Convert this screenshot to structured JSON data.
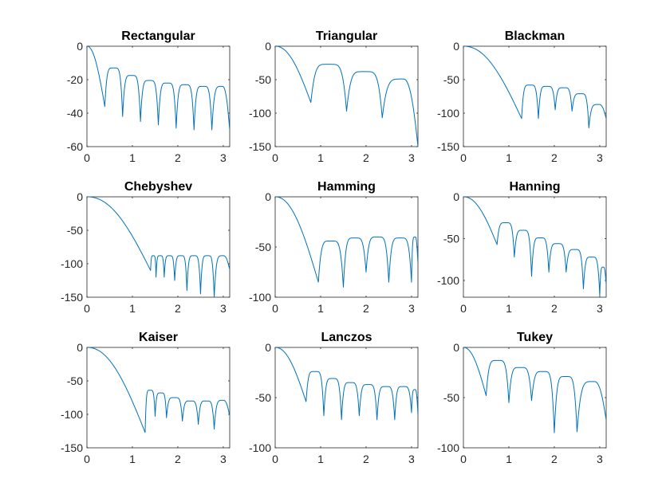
{
  "figure": {
    "background": "#ffffff",
    "line_color": "#0072bd"
  },
  "chart_data": [
    {
      "type": "line",
      "title": "Rectangular",
      "xlim": [
        0,
        3.1416
      ],
      "ylim": [
        -60,
        0
      ],
      "xticks": [
        "0",
        "1",
        "2",
        "3"
      ],
      "yticks": [
        "0",
        "-20",
        "-40",
        "-60"
      ],
      "lobe_nulls": [
        0.393,
        0.785,
        1.178,
        1.571,
        1.963,
        2.356,
        2.749
      ],
      "null_depths": [
        -36,
        -42,
        -45,
        -47,
        -49,
        -50,
        -50
      ],
      "lobe_peaks": [
        -13,
        -17.5,
        -20.5,
        -22,
        -23,
        -24,
        -24
      ],
      "end_value": -50
    },
    {
      "type": "line",
      "title": "Triangular",
      "xlim": [
        0,
        3.1416
      ],
      "ylim": [
        -150,
        0
      ],
      "xticks": [
        "0",
        "1",
        "2",
        "3"
      ],
      "yticks": [
        "0",
        "-50",
        "-100",
        "-150"
      ],
      "lobe_nulls": [
        0.785,
        1.571,
        2.356
      ],
      "null_depths": [
        -84,
        -97,
        -107
      ],
      "lobe_peaks": [
        -27,
        -38,
        -49
      ],
      "end_value": -150
    },
    {
      "type": "line",
      "title": "Blackman",
      "xlim": [
        0,
        3.1416
      ],
      "ylim": [
        -150,
        0
      ],
      "xticks": [
        "0",
        "1",
        "2",
        "3"
      ],
      "yticks": [
        "0",
        "-50",
        "-100",
        "-150"
      ],
      "lobe_nulls": [
        1.28,
        1.65,
        2.02,
        2.39,
        2.76
      ],
      "null_depths": [
        -108,
        -108,
        -95,
        -97,
        -122
      ],
      "lobe_peaks": [
        -58,
        -60,
        -62,
        -71,
        -87
      ],
      "end_value": -108
    },
    {
      "type": "line",
      "title": "Chebyshev",
      "xlim": [
        0,
        3.1416
      ],
      "ylim": [
        -150,
        0
      ],
      "xticks": [
        "0",
        "1",
        "2",
        "3"
      ],
      "yticks": [
        "0",
        "-50",
        "-100",
        "-150"
      ],
      "lobe_nulls": [
        1.4,
        1.52,
        1.7,
        1.93,
        2.2,
        2.5,
        2.8
      ],
      "null_depths": [
        -110,
        -120,
        -120,
        -125,
        -140,
        -145,
        -150
      ],
      "lobe_peaks": [
        -88,
        -88,
        -88,
        -88,
        -88,
        -88,
        -88
      ],
      "end_value": -108
    },
    {
      "type": "line",
      "title": "Hamming",
      "xlim": [
        0,
        3.1416
      ],
      "ylim": [
        -100,
        0
      ],
      "xticks": [
        "0",
        "1",
        "2",
        "3"
      ],
      "yticks": [
        "0",
        "-50",
        "-100"
      ],
      "lobe_nulls": [
        0.95,
        1.5,
        2.0,
        2.5,
        3.0
      ],
      "null_depths": [
        -85,
        -90,
        -75,
        -85,
        -85
      ],
      "lobe_peaks": [
        -44,
        -41,
        -40,
        -41,
        -40
      ],
      "end_value": -66
    },
    {
      "type": "line",
      "title": "Hanning",
      "xlim": [
        0,
        3.1416
      ],
      "ylim": [
        -120,
        0
      ],
      "xticks": [
        "0",
        "1",
        "2",
        "3"
      ],
      "yticks": [
        "0",
        "-50",
        "-100"
      ],
      "lobe_nulls": [
        0.74,
        1.12,
        1.5,
        1.88,
        2.26,
        2.64,
        3.0
      ],
      "null_depths": [
        -57,
        -72,
        -95,
        -90,
        -90,
        -110,
        -118
      ],
      "lobe_peaks": [
        -31,
        -40,
        -49,
        -56,
        -63,
        -72,
        -84
      ],
      "end_value": -104
    },
    {
      "type": "line",
      "title": "Kaiser",
      "xlim": [
        0,
        3.1416
      ],
      "ylim": [
        -150,
        0
      ],
      "xticks": [
        "0",
        "1",
        "2",
        "3"
      ],
      "yticks": [
        "0",
        "-50",
        "-100",
        "-150"
      ],
      "lobe_nulls": [
        1.28,
        1.5,
        1.75,
        2.1,
        2.45,
        2.8
      ],
      "null_depths": [
        -127,
        -103,
        -105,
        -110,
        -115,
        -122
      ],
      "lobe_peaks": [
        -64,
        -68,
        -75,
        -80,
        -80,
        -79
      ],
      "end_value": -102
    },
    {
      "type": "line",
      "title": "Lanczos",
      "xlim": [
        0,
        3.1416
      ],
      "ylim": [
        -100,
        0
      ],
      "xticks": [
        "0",
        "1",
        "2",
        "3"
      ],
      "yticks": [
        "0",
        "-50",
        "-100"
      ],
      "lobe_nulls": [
        0.68,
        1.07,
        1.46,
        1.85,
        2.24,
        2.63,
        3.0
      ],
      "null_depths": [
        -54,
        -68,
        -72,
        -68,
        -72,
        -72,
        -65
      ],
      "lobe_peaks": [
        -24,
        -31,
        -35,
        -37,
        -39,
        -39,
        -42
      ],
      "end_value": -67
    },
    {
      "type": "line",
      "title": "Tukey",
      "xlim": [
        0,
        3.1416
      ],
      "ylim": [
        -100,
        0
      ],
      "xticks": [
        "0",
        "1",
        "2",
        "3"
      ],
      "yticks": [
        "0",
        "-50",
        "-100"
      ],
      "lobe_nulls": [
        0.5,
        1.0,
        1.5,
        2.0,
        2.5
      ],
      "null_depths": [
        -48,
        -55,
        -53,
        -85,
        -84
      ],
      "lobe_peaks": [
        -13,
        -20,
        -24,
        -29,
        -34
      ],
      "end_value": -72
    }
  ]
}
